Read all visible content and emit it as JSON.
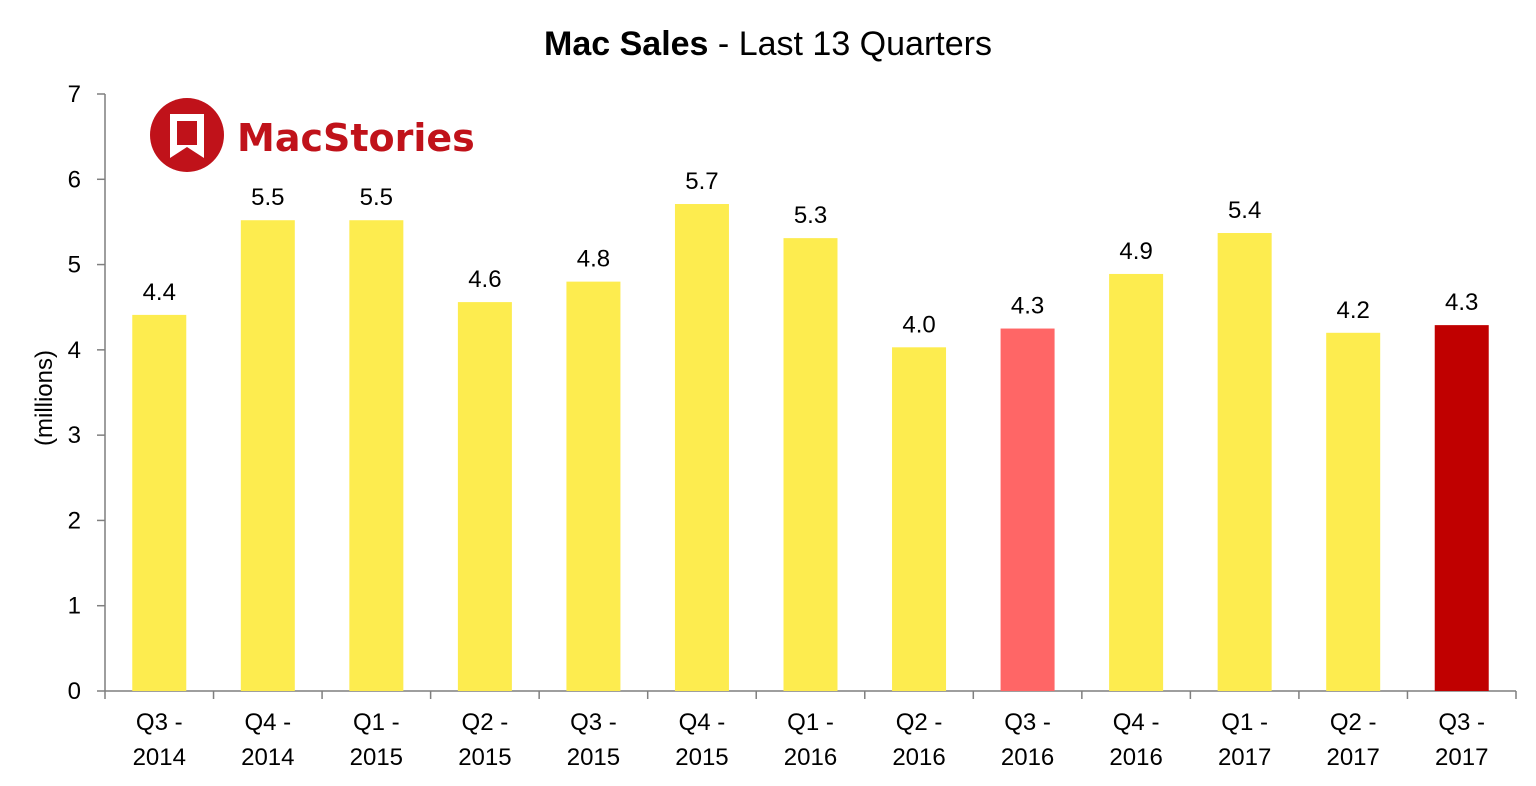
{
  "chart_data": {
    "type": "bar",
    "title_bold": "Mac Sales",
    "title_rest": " - Last 13 Quarters",
    "ylabel": "(millions)",
    "xlabel": "",
    "ylim": [
      0,
      7
    ],
    "yticks": [
      "0",
      "1",
      "2",
      "3",
      "4",
      "5",
      "6",
      "7"
    ],
    "grid": false,
    "legend": "none",
    "categories": [
      [
        "Q3 -",
        "2014"
      ],
      [
        "Q4 -",
        "2014"
      ],
      [
        "Q1 -",
        "2015"
      ],
      [
        "Q2 -",
        "2015"
      ],
      [
        "Q3 -",
        "2015"
      ],
      [
        "Q4 -",
        "2015"
      ],
      [
        "Q1 -",
        "2016"
      ],
      [
        "Q2 -",
        "2016"
      ],
      [
        "Q3 -",
        "2016"
      ],
      [
        "Q4 -",
        "2016"
      ],
      [
        "Q1 -",
        "2017"
      ],
      [
        "Q2 -",
        "2017"
      ],
      [
        "Q3 -",
        "2017"
      ]
    ],
    "values": [
      4.41,
      5.52,
      5.52,
      4.56,
      4.8,
      5.71,
      5.31,
      4.03,
      4.25,
      4.89,
      5.37,
      4.2,
      4.29
    ],
    "value_labels": [
      "4.4",
      "5.5",
      "5.5",
      "4.6",
      "4.8",
      "5.7",
      "5.3",
      "4.0",
      "4.3",
      "4.9",
      "5.4",
      "4.2",
      "4.3"
    ],
    "colors": [
      "#FDEC4F",
      "#FDEC4F",
      "#FDEC4F",
      "#FDEC4F",
      "#FDEC4F",
      "#FDEC4F",
      "#FDEC4F",
      "#FDEC4F",
      "#FF6666",
      "#FDEC4F",
      "#FDEC4F",
      "#FDEC4F",
      "#C00000"
    ]
  },
  "logo": {
    "text": "MacStories",
    "color": "#C0121A"
  }
}
